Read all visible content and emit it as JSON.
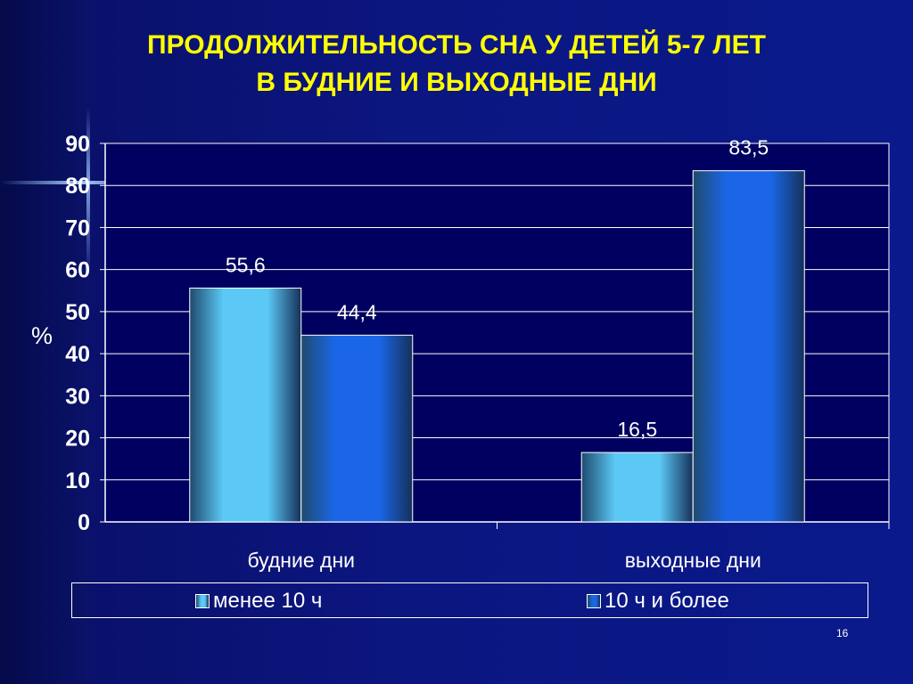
{
  "slide": {
    "number": "16"
  },
  "chart_data": {
    "type": "bar",
    "title_lines": [
      "ПРОДОЛЖИТЕЛЬНОСТЬ СНА У ДЕТЕЙ 5-7 ЛЕТ",
      "В БУДНИЕ И ВЫХОДНЫЕ ДНИ"
    ],
    "xlabel": "",
    "ylabel": "%",
    "categories": [
      "будние дни",
      "выходные дни"
    ],
    "series": [
      {
        "name": "менее 10 ч",
        "values": [
          55.6,
          16.5
        ],
        "labels": [
          "55,6",
          "16,5"
        ],
        "color": "#5bc8f5"
      },
      {
        "name": "10 ч и более",
        "values": [
          44.4,
          83.5
        ],
        "labels": [
          "44,4",
          "83,5"
        ],
        "color": "#1a66e6"
      }
    ],
    "ylim": [
      0,
      90
    ],
    "yticks": [
      0,
      10,
      20,
      30,
      40,
      50,
      60,
      70,
      80,
      90
    ],
    "grid": true,
    "legend": "bottom"
  },
  "colors": {
    "title": "#ffff00",
    "text": "#ffffff",
    "plot_background": "#000060",
    "gridline": "#ffffff"
  }
}
